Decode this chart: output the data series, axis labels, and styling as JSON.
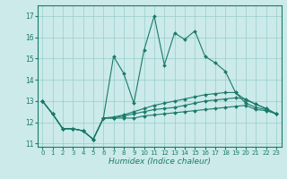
{
  "xlabel": "Humidex (Indice chaleur)",
  "bg_color": "#cceaea",
  "grid_color": "#99cccc",
  "line_color": "#1a7a6a",
  "xlim": [
    -0.5,
    23.5
  ],
  "ylim": [
    10.85,
    17.5
  ],
  "yticks": [
    11,
    12,
    13,
    14,
    15,
    16,
    17
  ],
  "xticks": [
    0,
    1,
    2,
    3,
    4,
    5,
    6,
    7,
    8,
    9,
    10,
    11,
    12,
    13,
    14,
    15,
    16,
    17,
    18,
    19,
    20,
    21,
    22,
    23
  ],
  "series": [
    [
      13.0,
      12.4,
      11.7,
      11.7,
      11.6,
      11.2,
      12.2,
      15.1,
      14.3,
      12.9,
      15.4,
      17.0,
      14.7,
      16.2,
      15.9,
      16.3,
      15.1,
      14.8,
      14.4,
      13.4,
      12.9,
      12.7,
      12.6,
      12.4
    ],
    [
      13.0,
      12.4,
      11.7,
      11.7,
      11.6,
      11.2,
      12.2,
      12.2,
      12.2,
      12.2,
      12.3,
      12.35,
      12.4,
      12.45,
      12.5,
      12.55,
      12.6,
      12.65,
      12.7,
      12.75,
      12.8,
      12.6,
      12.55,
      12.4
    ],
    [
      13.0,
      12.4,
      11.7,
      11.7,
      11.6,
      11.2,
      12.2,
      12.2,
      12.3,
      12.4,
      12.5,
      12.6,
      12.65,
      12.7,
      12.8,
      12.9,
      13.0,
      13.05,
      13.1,
      13.15,
      13.1,
      12.85,
      12.65,
      12.4
    ],
    [
      13.0,
      12.4,
      11.7,
      11.7,
      11.6,
      11.2,
      12.2,
      12.25,
      12.35,
      12.5,
      12.65,
      12.8,
      12.9,
      13.0,
      13.1,
      13.2,
      13.3,
      13.35,
      13.4,
      13.4,
      13.05,
      12.85,
      12.65,
      12.4
    ]
  ]
}
